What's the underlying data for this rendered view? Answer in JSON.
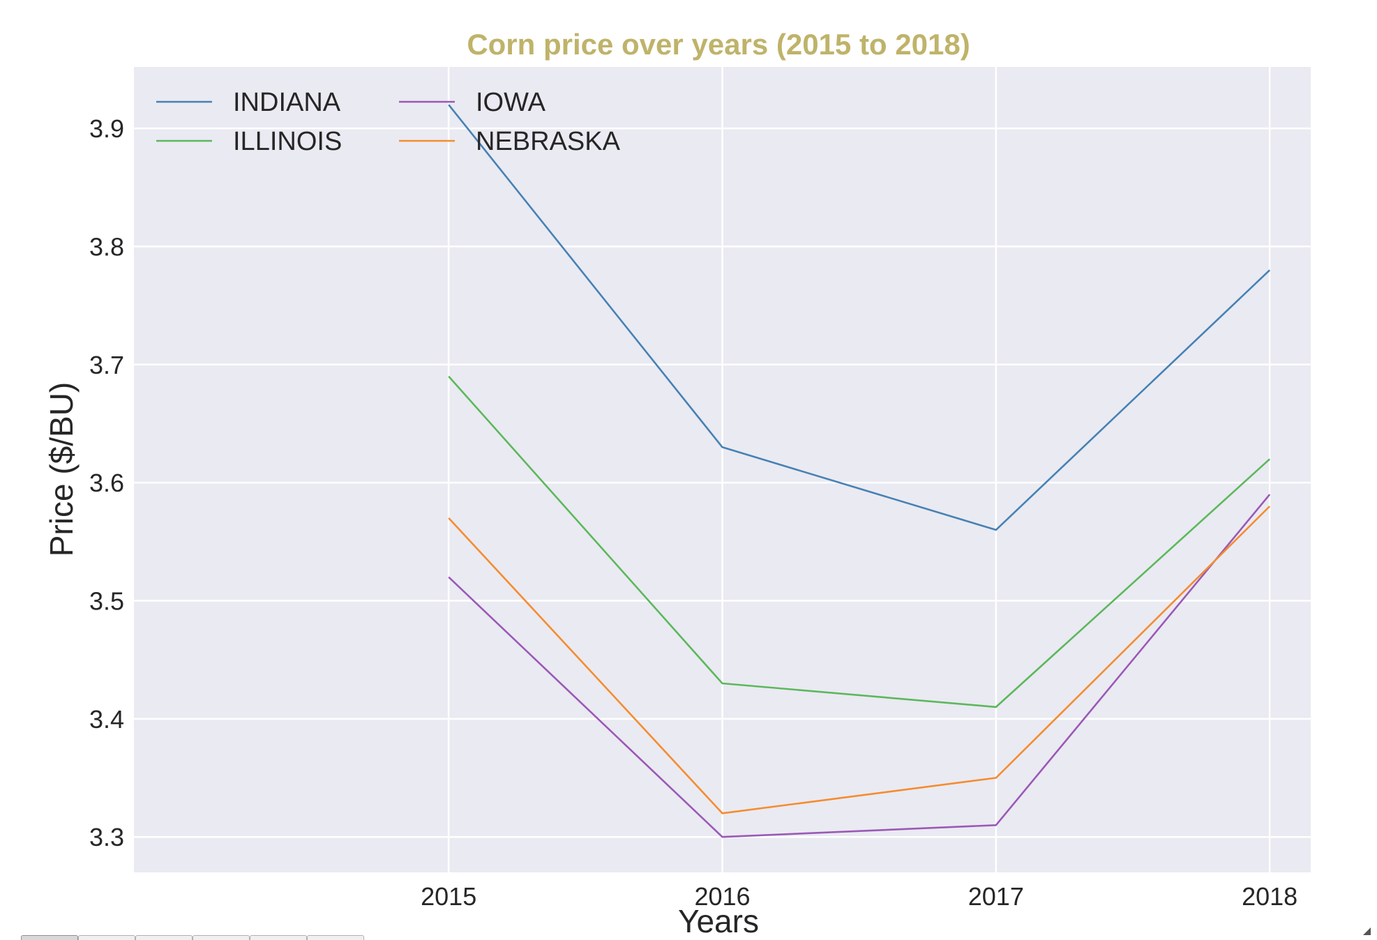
{
  "chart_data": {
    "type": "line",
    "title": "Corn price over years (2015 to 2018)",
    "title_color": "#bfb36a",
    "xlabel": "Years",
    "ylabel": "Price ($/BU)",
    "x": [
      2015,
      2016,
      2017,
      2018
    ],
    "x_tick_labels": [
      "2015",
      "2016",
      "2017",
      "2018"
    ],
    "xlim": [
      2013.85,
      2018.15
    ],
    "ylim": [
      3.27,
      3.952
    ],
    "y_ticks": [
      3.3,
      3.4,
      3.5,
      3.6,
      3.7,
      3.8,
      3.9
    ],
    "y_tick_labels": [
      "3.3",
      "3.4",
      "3.5",
      "3.6",
      "3.7",
      "3.8",
      "3.9"
    ],
    "grid": true,
    "plot_background": "#eaeaf2",
    "grid_color": "#ffffff",
    "legend_position": "top-left",
    "legend_columns": 2,
    "series": [
      {
        "name": "INDIANA",
        "color": "#4682b4",
        "values": [
          3.92,
          3.63,
          3.56,
          3.78
        ]
      },
      {
        "name": "IOWA",
        "color": "#9b59b6",
        "values": [
          3.52,
          3.3,
          3.31,
          3.59
        ]
      },
      {
        "name": "ILLINOIS",
        "color": "#5cb85c",
        "values": [
          3.69,
          3.43,
          3.41,
          3.62
        ]
      },
      {
        "name": "NEBRASKA",
        "color": "#f58c2e",
        "values": [
          3.57,
          3.32,
          3.35,
          3.58
        ]
      }
    ]
  },
  "toolbar": {
    "button_count": 6
  }
}
